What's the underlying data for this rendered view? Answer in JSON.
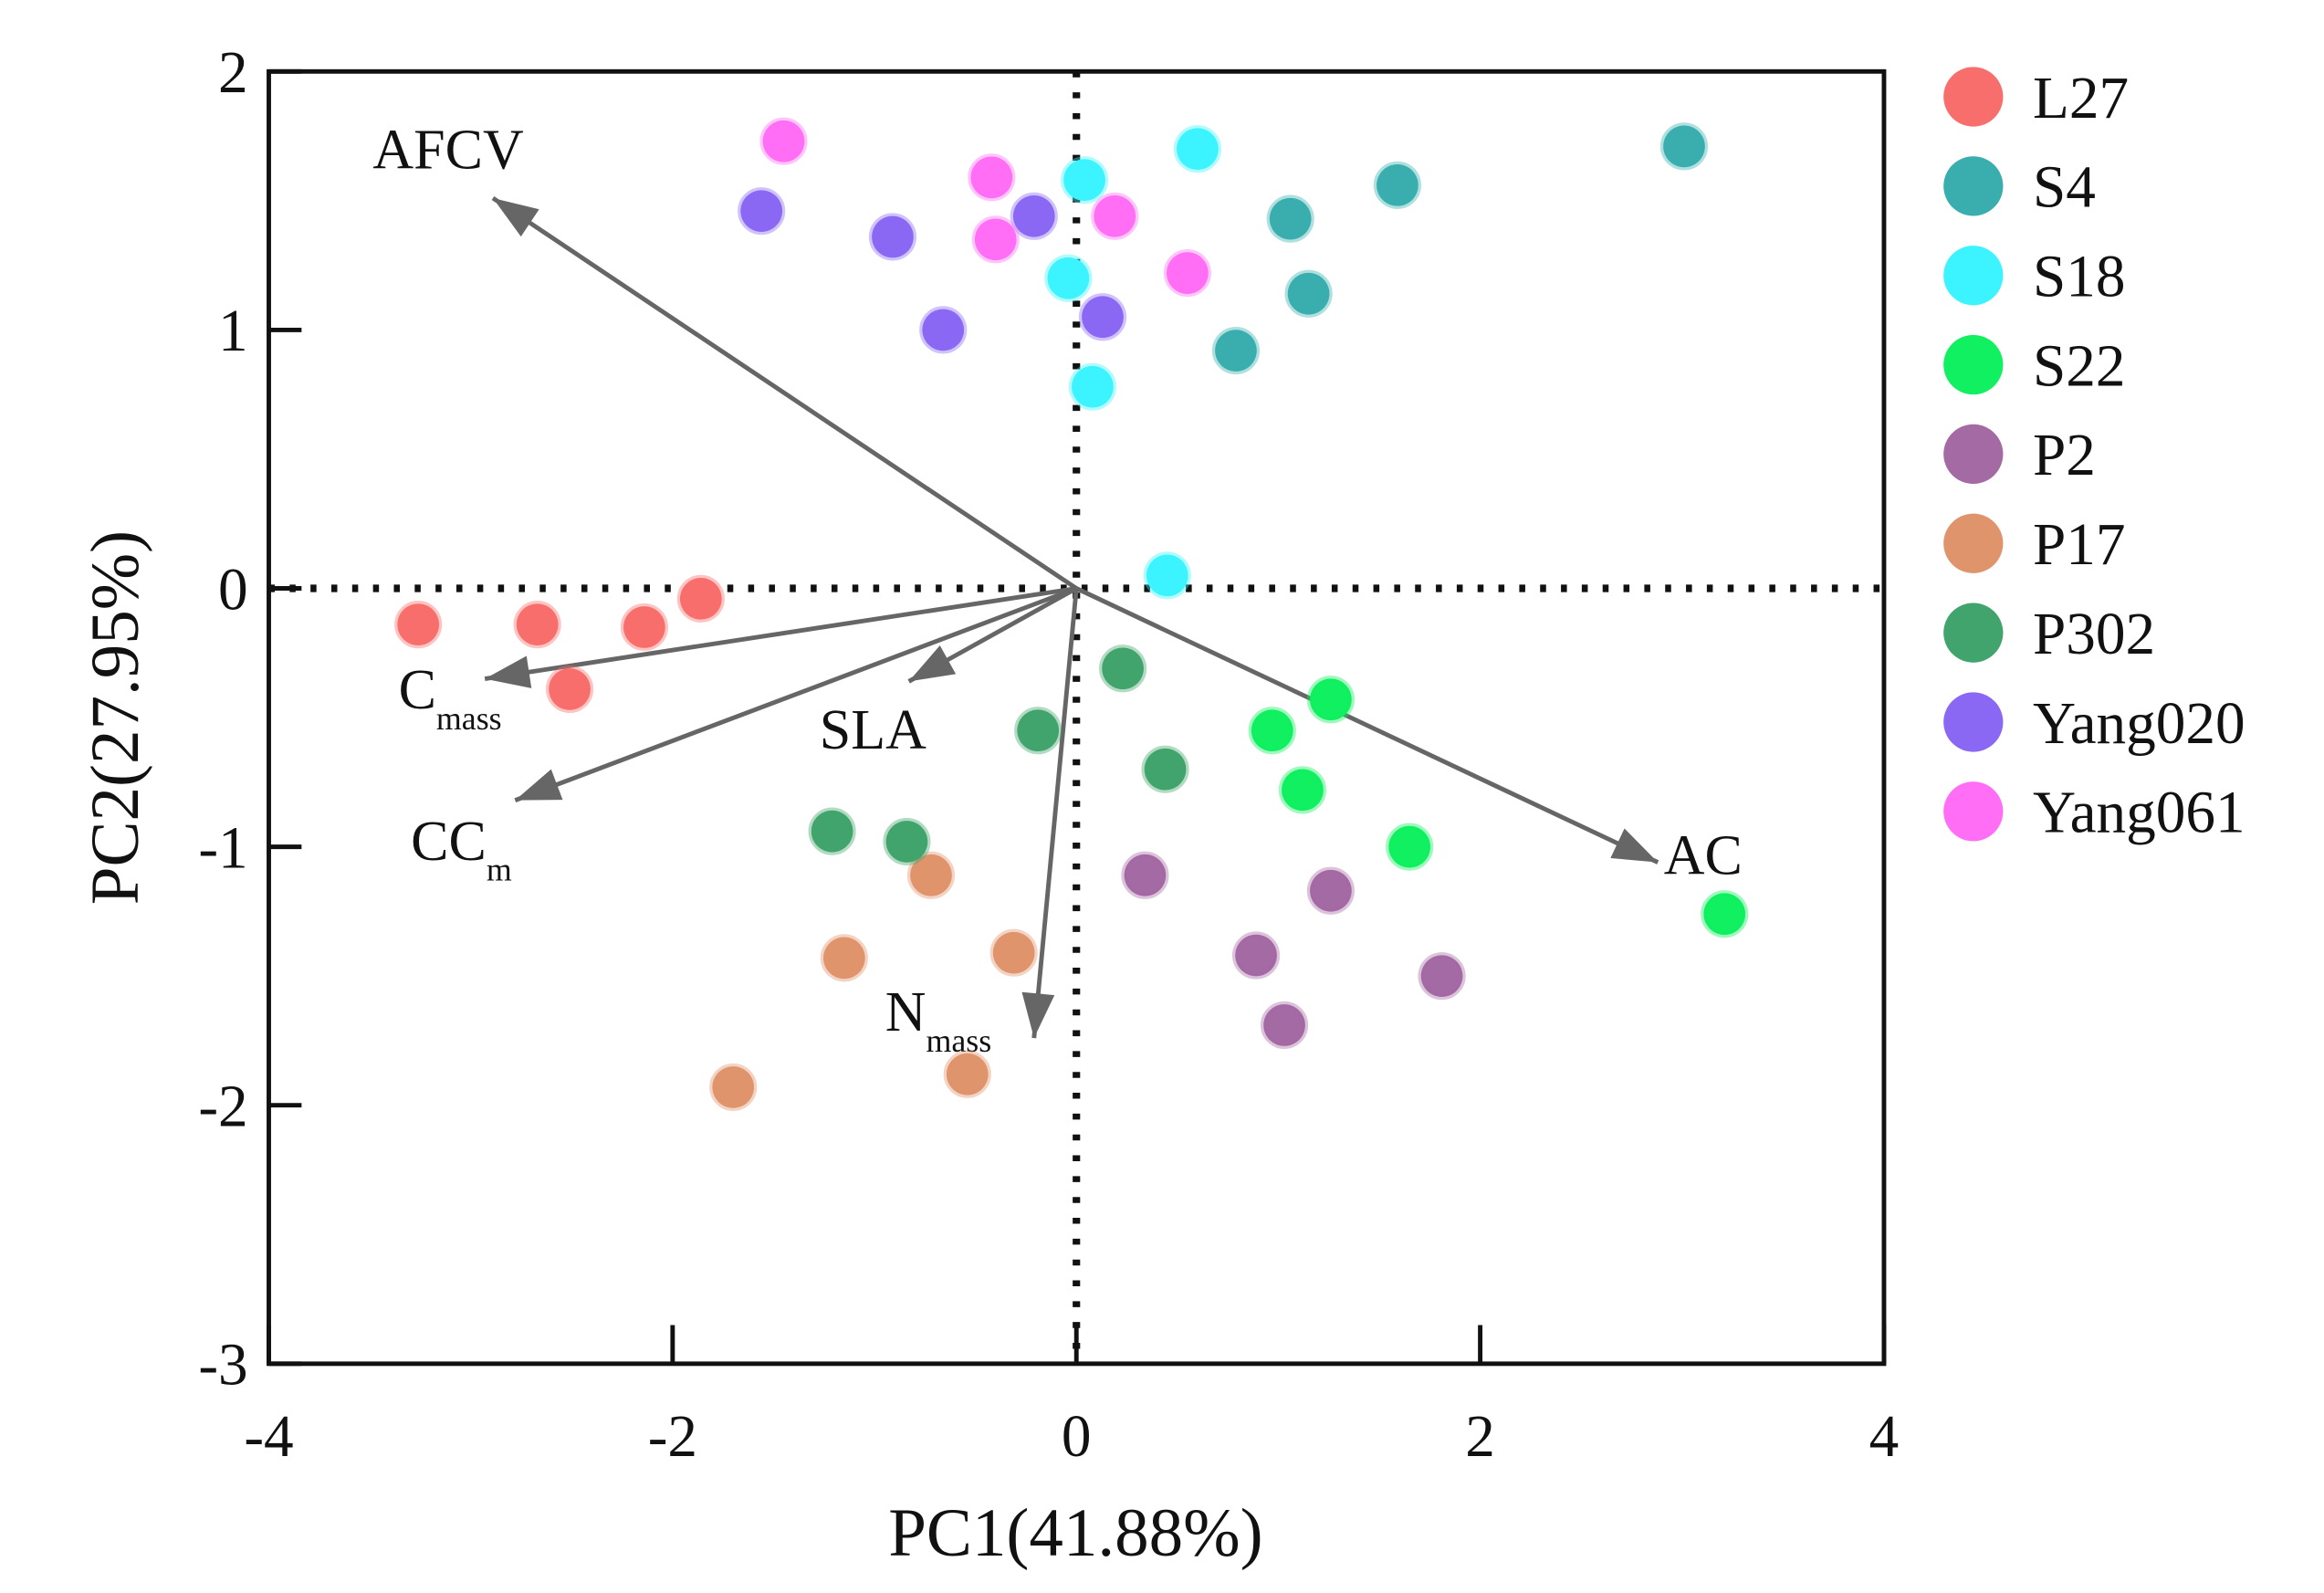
{
  "chart_data": {
    "type": "scatter",
    "subtype": "pca-biplot",
    "xlabel": "PC1(41.88%)",
    "ylabel": "PC2(27.95%)",
    "xlim": [
      -4,
      4
    ],
    "ylim": [
      -3,
      2
    ],
    "xticks": [
      -4,
      -2,
      0,
      2,
      4
    ],
    "yticks": [
      2,
      1,
      0,
      -1,
      -2,
      -3
    ],
    "grid": false,
    "reference_lines": "dotted lines at x=0 and y=0",
    "legend_position": "right",
    "series": [
      {
        "name": "L27",
        "color": "#f86e6c",
        "points": [
          [
            -3.26,
            -0.14
          ],
          [
            -2.67,
            -0.14
          ],
          [
            -2.14,
            -0.15
          ],
          [
            -1.86,
            -0.04
          ],
          [
            -2.51,
            -0.39
          ]
        ]
      },
      {
        "name": "S4",
        "color": "#3aaeae",
        "points": [
          [
            3.01,
            1.71
          ],
          [
            1.59,
            1.56
          ],
          [
            1.06,
            1.43
          ],
          [
            1.15,
            1.14
          ],
          [
            0.79,
            0.92
          ]
        ]
      },
      {
        "name": "S18",
        "color": "#3cf4ff",
        "points": [
          [
            0.6,
            1.7
          ],
          [
            0.04,
            1.58
          ],
          [
            -0.04,
            1.2
          ],
          [
            0.08,
            0.78
          ],
          [
            0.45,
            0.05
          ]
        ]
      },
      {
        "name": "S22",
        "color": "#10f060",
        "points": [
          [
            1.26,
            -0.43
          ],
          [
            0.97,
            -0.55
          ],
          [
            1.12,
            -0.78
          ],
          [
            1.65,
            -1.0
          ],
          [
            3.21,
            -1.26
          ]
        ]
      },
      {
        "name": "P2",
        "color": "#a46aa4",
        "points": [
          [
            0.34,
            -1.11
          ],
          [
            1.26,
            -1.17
          ],
          [
            0.89,
            -1.42
          ],
          [
            1.81,
            -1.5
          ],
          [
            1.03,
            -1.69
          ]
        ]
      },
      {
        "name": "P17",
        "color": "#e0946c",
        "points": [
          [
            -0.72,
            -1.11
          ],
          [
            -1.15,
            -1.43
          ],
          [
            -0.31,
            -1.41
          ],
          [
            -0.54,
            -1.88
          ],
          [
            -1.7,
            -1.93
          ]
        ]
      },
      {
        "name": "P302",
        "color": "#40a46c",
        "points": [
          [
            0.23,
            -0.31
          ],
          [
            -0.19,
            -0.55
          ],
          [
            0.44,
            -0.7
          ],
          [
            -1.21,
            -0.94
          ],
          [
            -0.84,
            -0.98
          ]
        ]
      },
      {
        "name": "Yang020",
        "color": "#8a68f4",
        "points": [
          [
            -1.56,
            1.46
          ],
          [
            -0.91,
            1.36
          ],
          [
            -0.21,
            1.44
          ],
          [
            0.13,
            1.05
          ],
          [
            -0.66,
            1.0
          ]
        ]
      },
      {
        "name": "Yang061",
        "color": "#ff6ef4",
        "points": [
          [
            -1.45,
            1.73
          ],
          [
            -0.42,
            1.59
          ],
          [
            -0.4,
            1.35
          ],
          [
            0.19,
            1.44
          ],
          [
            0.55,
            1.22
          ]
        ]
      }
    ],
    "loadings": [
      {
        "name": "AFCV",
        "main": "AFCV",
        "sub": "",
        "x": -2.89,
        "y": 1.51
      },
      {
        "name": "Cmass",
        "main": "C",
        "sub": "mass",
        "x": -2.93,
        "y": -0.35
      },
      {
        "name": "CCm",
        "main": "CC",
        "sub": "m",
        "x": -2.78,
        "y": -0.82
      },
      {
        "name": "SLA",
        "main": "SLA",
        "sub": "",
        "x": -0.83,
        "y": -0.36
      },
      {
        "name": "Nmass",
        "main": "N",
        "sub": "mass",
        "x": -0.21,
        "y": -1.74
      },
      {
        "name": "AC",
        "main": "AC",
        "sub": "",
        "x": 2.88,
        "y": -1.06
      }
    ]
  }
}
